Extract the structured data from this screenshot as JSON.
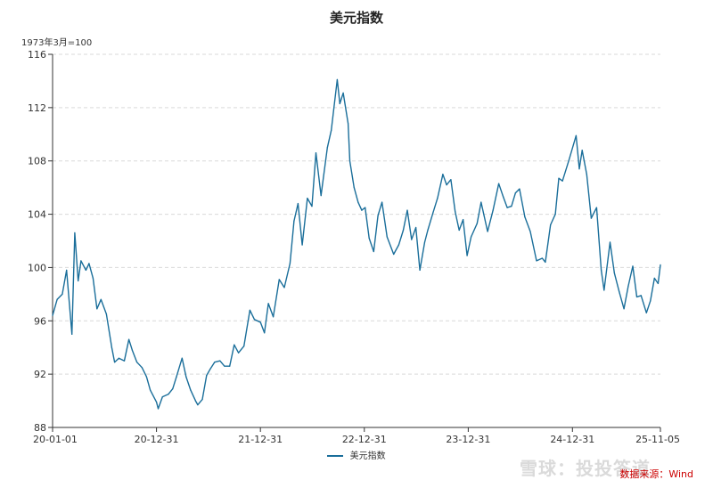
{
  "chart_data": {
    "type": "line",
    "title": "美元指数",
    "unit_label": "1973年3月=100",
    "ylim": [
      88,
      116
    ],
    "y_ticks": [
      88,
      92,
      96,
      100,
      104,
      108,
      112,
      116
    ],
    "x_tick_labels": [
      "20-01-01",
      "20-12-31",
      "21-12-31",
      "22-12-31",
      "23-12-31",
      "24-12-31",
      "25-11-05"
    ],
    "x_tick_dates": [
      "2020-01-01",
      "2020-12-31",
      "2021-12-31",
      "2022-12-31",
      "2023-12-31",
      "2024-12-31",
      "2025-11-05"
    ],
    "x_range": [
      "2020-01-01",
      "2025-11-05"
    ],
    "grid": true,
    "legend_position": "bottom",
    "series": [
      {
        "name": "美元指数",
        "color": "#1a6e9a",
        "points": [
          [
            "2020-01-01",
            96.4
          ],
          [
            "2020-01-17",
            97.6
          ],
          [
            "2020-02-04",
            98.0
          ],
          [
            "2020-02-19",
            99.8
          ],
          [
            "2020-03-09",
            95.0
          ],
          [
            "2020-03-19",
            102.6
          ],
          [
            "2020-03-31",
            99.0
          ],
          [
            "2020-04-10",
            100.5
          ],
          [
            "2020-04-27",
            99.8
          ],
          [
            "2020-05-08",
            100.3
          ],
          [
            "2020-05-22",
            99.2
          ],
          [
            "2020-06-05",
            96.9
          ],
          [
            "2020-06-19",
            97.6
          ],
          [
            "2020-07-08",
            96.5
          ],
          [
            "2020-07-27",
            94.0
          ],
          [
            "2020-08-06",
            92.9
          ],
          [
            "2020-08-21",
            93.2
          ],
          [
            "2020-09-09",
            93.0
          ],
          [
            "2020-09-25",
            94.6
          ],
          [
            "2020-10-07",
            93.8
          ],
          [
            "2020-10-23",
            92.9
          ],
          [
            "2020-11-10",
            92.5
          ],
          [
            "2020-11-26",
            91.8
          ],
          [
            "2020-12-09",
            90.8
          ],
          [
            "2020-12-31",
            89.9
          ],
          [
            "2021-01-06",
            89.4
          ],
          [
            "2021-01-21",
            90.3
          ],
          [
            "2021-02-11",
            90.5
          ],
          [
            "2021-02-26",
            90.9
          ],
          [
            "2021-03-11",
            91.8
          ],
          [
            "2021-03-31",
            93.2
          ],
          [
            "2021-04-14",
            91.8
          ],
          [
            "2021-04-30",
            90.8
          ],
          [
            "2021-05-17",
            90.0
          ],
          [
            "2021-05-25",
            89.7
          ],
          [
            "2021-06-10",
            90.1
          ],
          [
            "2021-06-25",
            91.9
          ],
          [
            "2021-07-08",
            92.4
          ],
          [
            "2021-07-23",
            92.9
          ],
          [
            "2021-08-11",
            93.0
          ],
          [
            "2021-08-27",
            92.6
          ],
          [
            "2021-09-14",
            92.6
          ],
          [
            "2021-09-30",
            94.2
          ],
          [
            "2021-10-15",
            93.6
          ],
          [
            "2021-11-03",
            94.1
          ],
          [
            "2021-11-24",
            96.8
          ],
          [
            "2021-12-10",
            96.1
          ],
          [
            "2021-12-31",
            95.9
          ],
          [
            "2022-01-14",
            95.1
          ],
          [
            "2022-01-28",
            97.3
          ],
          [
            "2022-02-14",
            96.3
          ],
          [
            "2022-03-07",
            99.1
          ],
          [
            "2022-03-25",
            98.5
          ],
          [
            "2022-04-14",
            100.3
          ],
          [
            "2022-04-28",
            103.5
          ],
          [
            "2022-05-12",
            104.8
          ],
          [
            "2022-05-27",
            101.7
          ],
          [
            "2022-06-14",
            105.2
          ],
          [
            "2022-06-30",
            104.6
          ],
          [
            "2022-07-14",
            108.6
          ],
          [
            "2022-08-01",
            105.4
          ],
          [
            "2022-08-23",
            109.0
          ],
          [
            "2022-09-06",
            110.3
          ],
          [
            "2022-09-27",
            114.1
          ],
          [
            "2022-10-06",
            112.3
          ],
          [
            "2022-10-18",
            113.1
          ],
          [
            "2022-11-04",
            110.8
          ],
          [
            "2022-11-10",
            108.0
          ],
          [
            "2022-11-25",
            106.0
          ],
          [
            "2022-12-09",
            104.9
          ],
          [
            "2022-12-22",
            104.3
          ],
          [
            "2023-01-03",
            104.5
          ],
          [
            "2023-01-17",
            102.2
          ],
          [
            "2023-02-02",
            101.2
          ],
          [
            "2023-02-17",
            103.9
          ],
          [
            "2023-03-03",
            104.9
          ],
          [
            "2023-03-21",
            102.3
          ],
          [
            "2023-04-13",
            101.0
          ],
          [
            "2023-05-01",
            101.7
          ],
          [
            "2023-05-17",
            102.8
          ],
          [
            "2023-05-31",
            104.3
          ],
          [
            "2023-06-15",
            102.1
          ],
          [
            "2023-06-30",
            103.0
          ],
          [
            "2023-07-14",
            99.8
          ],
          [
            "2023-07-31",
            101.9
          ],
          [
            "2023-08-11",
            102.8
          ],
          [
            "2023-08-29",
            104.1
          ],
          [
            "2023-09-14",
            105.2
          ],
          [
            "2023-10-03",
            107.0
          ],
          [
            "2023-10-16",
            106.2
          ],
          [
            "2023-10-31",
            106.6
          ],
          [
            "2023-11-15",
            104.2
          ],
          [
            "2023-11-29",
            102.8
          ],
          [
            "2023-12-13",
            103.6
          ],
          [
            "2023-12-27",
            100.9
          ],
          [
            "2024-01-10",
            102.3
          ],
          [
            "2024-01-31",
            103.3
          ],
          [
            "2024-02-14",
            104.9
          ],
          [
            "2024-03-08",
            102.7
          ],
          [
            "2024-03-27",
            104.3
          ],
          [
            "2024-04-16",
            106.3
          ],
          [
            "2024-05-02",
            105.3
          ],
          [
            "2024-05-16",
            104.5
          ],
          [
            "2024-05-31",
            104.6
          ],
          [
            "2024-06-14",
            105.6
          ],
          [
            "2024-06-28",
            105.9
          ],
          [
            "2024-07-17",
            103.8
          ],
          [
            "2024-08-05",
            102.7
          ],
          [
            "2024-08-27",
            100.5
          ],
          [
            "2024-09-16",
            100.7
          ],
          [
            "2024-09-27",
            100.4
          ],
          [
            "2024-10-15",
            103.2
          ],
          [
            "2024-11-01",
            104.0
          ],
          [
            "2024-11-13",
            106.7
          ],
          [
            "2024-11-26",
            106.5
          ],
          [
            "2024-12-18",
            108.0
          ],
          [
            "2025-01-13",
            109.9
          ],
          [
            "2025-01-24",
            107.4
          ],
          [
            "2025-02-03",
            108.8
          ],
          [
            "2025-02-19",
            107.0
          ],
          [
            "2025-03-07",
            103.7
          ],
          [
            "2025-03-26",
            104.5
          ],
          [
            "2025-04-11",
            99.8
          ],
          [
            "2025-04-21",
            98.3
          ],
          [
            "2025-05-12",
            101.9
          ],
          [
            "2025-05-27",
            99.6
          ],
          [
            "2025-06-13",
            98.2
          ],
          [
            "2025-06-30",
            96.9
          ],
          [
            "2025-07-15",
            98.6
          ],
          [
            "2025-07-31",
            100.1
          ],
          [
            "2025-08-14",
            97.8
          ],
          [
            "2025-08-29",
            97.9
          ],
          [
            "2025-09-17",
            96.6
          ],
          [
            "2025-10-01",
            97.5
          ],
          [
            "2025-10-15",
            99.2
          ],
          [
            "2025-10-28",
            98.8
          ],
          [
            "2025-11-05",
            100.2
          ]
        ]
      }
    ]
  },
  "source": "数据来源：Wind",
  "watermark": "雪球：投投答道"
}
